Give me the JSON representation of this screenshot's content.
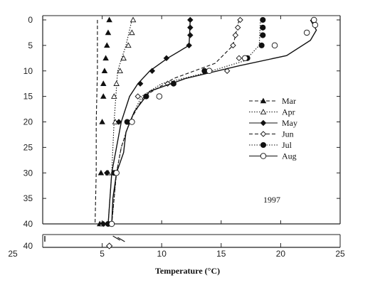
{
  "chart_data": {
    "type": "line",
    "title": "",
    "xlabel": "Temperature (°C)",
    "ylabel": "",
    "xlim": [
      0,
      25
    ],
    "ylim": [
      40,
      0
    ],
    "x_ticks": [
      0,
      5,
      10,
      15,
      20,
      25
    ],
    "x_tick_labels": [
      "",
      "5",
      "10",
      "15",
      "20",
      "25"
    ],
    "x_tick_labels_top": [
      "",
      "",
      "",
      "",
      "",
      ""
    ],
    "y_ticks": [
      0,
      5,
      10,
      15,
      20,
      25,
      30,
      35,
      40
    ],
    "y_tick_labels": [
      "0",
      "5",
      "10",
      "15",
      "20",
      "25",
      "30",
      "35",
      "40"
    ],
    "lower_panel": {
      "y_label": "40",
      "x_tick_labels": [
        "25",
        "5",
        "10",
        "15",
        "20",
        "25"
      ]
    },
    "grid": false,
    "legend_position": "right",
    "annotation": "1997",
    "series": [
      {
        "name": "Mar",
        "style": "dashed-triangle-filled",
        "line": [
          [
            4.6,
            0
          ],
          [
            4.6,
            10
          ],
          [
            4.5,
            20
          ],
          [
            4.5,
            30
          ],
          [
            4.4,
            40
          ]
        ],
        "points": [
          [
            5.6,
            0
          ],
          [
            5.5,
            2.5
          ],
          [
            5.4,
            5
          ],
          [
            5.3,
            7.5
          ],
          [
            5.2,
            10
          ],
          [
            5.1,
            12.5
          ],
          [
            5.1,
            15
          ],
          [
            5.0,
            20
          ],
          [
            4.9,
            30
          ],
          [
            4.8,
            40
          ]
        ]
      },
      {
        "name": "Apr",
        "style": "dotted-triangle-open",
        "line": [
          [
            7.5,
            0
          ],
          [
            7.0,
            5
          ],
          [
            6.3,
            10
          ],
          [
            6.0,
            20
          ],
          [
            5.8,
            30
          ],
          [
            5.5,
            40
          ]
        ],
        "points": [
          [
            7.6,
            0
          ],
          [
            7.5,
            2.5
          ],
          [
            7.2,
            5
          ],
          [
            6.8,
            7.5
          ],
          [
            6.5,
            10
          ],
          [
            6.2,
            12.5
          ],
          [
            6.0,
            15
          ],
          [
            6.1,
            20
          ],
          [
            5.5,
            30
          ],
          [
            5.0,
            40
          ]
        ]
      },
      {
        "name": "May",
        "style": "solid-diamond-filled",
        "line": [
          [
            12.4,
            0
          ],
          [
            12.3,
            5
          ],
          [
            10.5,
            7.5
          ],
          [
            9.0,
            10
          ],
          [
            8.0,
            12.5
          ],
          [
            7.3,
            15
          ],
          [
            6.6,
            20
          ],
          [
            6.2,
            25
          ],
          [
            5.8,
            30
          ],
          [
            5.5,
            40
          ]
        ],
        "points": [
          [
            12.4,
            0
          ],
          [
            12.4,
            1.5
          ],
          [
            12.4,
            3
          ],
          [
            12.3,
            5
          ],
          [
            10.4,
            7.5
          ],
          [
            9.2,
            10
          ],
          [
            8.2,
            12.5
          ],
          [
            6.4,
            20
          ],
          [
            5.4,
            30
          ],
          [
            5.1,
            40
          ]
        ]
      },
      {
        "name": "Jun",
        "style": "dashed-diamond-open",
        "line": [
          [
            16.5,
            0
          ],
          [
            16.0,
            5
          ],
          [
            14.5,
            8.5
          ],
          [
            11.0,
            11.5
          ],
          [
            8.5,
            15
          ],
          [
            7.3,
            20
          ],
          [
            6.6,
            25
          ],
          [
            6.2,
            30
          ],
          [
            5.8,
            40
          ]
        ],
        "points": [
          [
            16.6,
            0
          ],
          [
            16.4,
            1.5
          ],
          [
            16.2,
            3
          ],
          [
            16.0,
            5
          ],
          [
            16.5,
            7.5
          ],
          [
            15.5,
            10
          ],
          [
            10.5,
            12.5
          ],
          [
            8.0,
            15
          ],
          [
            5.8,
            40
          ]
        ]
      },
      {
        "name": "Jul",
        "style": "dotted-circle-filled",
        "line": [
          [
            18.3,
            0
          ],
          [
            18.2,
            5
          ],
          [
            17.0,
            8
          ],
          [
            13.5,
            10.5
          ],
          [
            10.0,
            12.5
          ],
          [
            8.3,
            15
          ],
          [
            7.3,
            20
          ],
          [
            6.6,
            25
          ],
          [
            6.2,
            30
          ],
          [
            5.8,
            40
          ]
        ],
        "points": [
          [
            18.5,
            0
          ],
          [
            18.5,
            1.5
          ],
          [
            18.5,
            3
          ],
          [
            18.4,
            5
          ],
          [
            17.2,
            7.5
          ],
          [
            13.6,
            10
          ],
          [
            11.0,
            12.5
          ],
          [
            8.7,
            15
          ],
          [
            7.1,
            20
          ],
          [
            6.0,
            30
          ],
          [
            5.5,
            40
          ]
        ]
      },
      {
        "name": "Aug",
        "style": "solid-circle-open",
        "line": [
          [
            22.5,
            0
          ],
          [
            23.0,
            2
          ],
          [
            22.5,
            4
          ],
          [
            20.5,
            7
          ],
          [
            16.5,
            9
          ],
          [
            12.0,
            11.5
          ],
          [
            9.0,
            14
          ],
          [
            7.7,
            18
          ],
          [
            7.0,
            22
          ],
          [
            6.8,
            26
          ],
          [
            6.2,
            30
          ],
          [
            5.9,
            35
          ],
          [
            5.8,
            40
          ]
        ],
        "points": [
          [
            22.8,
            0
          ],
          [
            22.9,
            1
          ],
          [
            22.2,
            2.5
          ],
          [
            19.5,
            5
          ],
          [
            17.0,
            7.5
          ],
          [
            14.0,
            10
          ],
          [
            9.8,
            15
          ],
          [
            7.5,
            20
          ],
          [
            6.2,
            30
          ],
          [
            5.8,
            40
          ]
        ]
      }
    ]
  }
}
